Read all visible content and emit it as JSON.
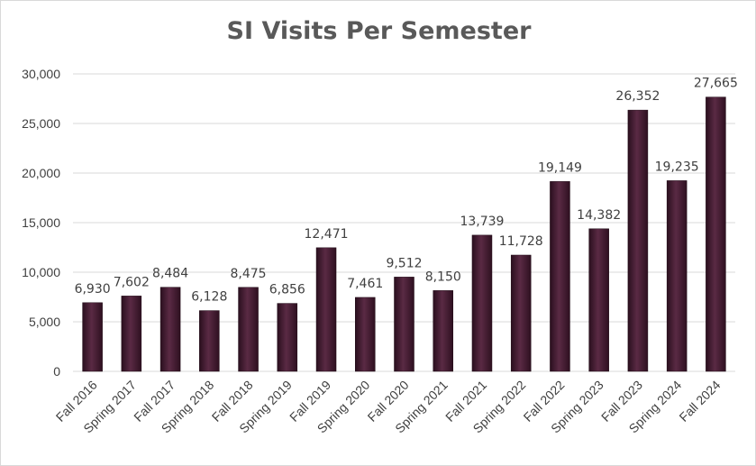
{
  "chart_data": {
    "type": "bar",
    "title": "SI Visits Per Semester",
    "xlabel": "",
    "ylabel": "",
    "ylim": [
      0,
      30000
    ],
    "yticks": [
      0,
      5000,
      10000,
      15000,
      20000,
      25000,
      30000
    ],
    "ytick_labels": [
      "0",
      "5,000",
      "10,000",
      "15,000",
      "20,000",
      "25,000",
      "30,000"
    ],
    "grid": true,
    "legend": "none",
    "bar_color": "#4a1f35",
    "categories": [
      "Fall 2016",
      "Spring 2017",
      "Fall 2017",
      "Spring 2018",
      "Fall 2018",
      "Spring 2019",
      "Fall 2019",
      "Spring 2020",
      "Fall 2020",
      "Spring 2021",
      "Fall 2021",
      "Spring 2022",
      "Fall 2022",
      "Spring 2023",
      "Fall 2023",
      "Spring 2024",
      "Fall 2024"
    ],
    "values": [
      6930,
      7602,
      8484,
      6128,
      8475,
      6856,
      12471,
      7461,
      9512,
      8150,
      13739,
      11728,
      19149,
      14382,
      26352,
      19235,
      27665
    ],
    "data_labels": [
      "6,930",
      "7,602",
      "8,484",
      "6,128",
      "8,475",
      "6,856",
      "12,471",
      "7,461",
      "9,512",
      "8,150",
      "13,739",
      "11,728",
      "19,149",
      "14,382",
      "26,352",
      "19,235",
      "27,665"
    ]
  }
}
